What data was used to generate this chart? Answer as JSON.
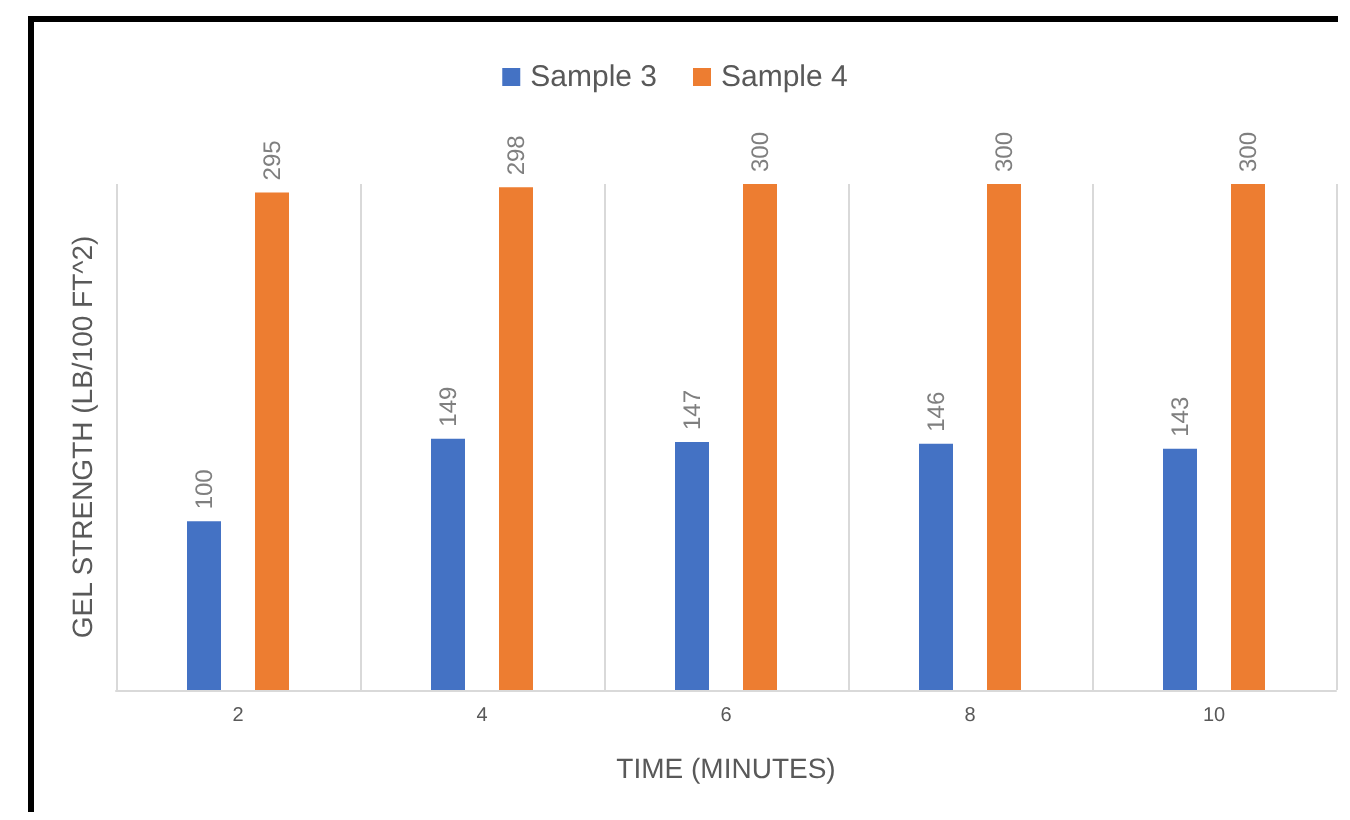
{
  "chart_data": {
    "type": "bar",
    "xlabel": "TIME (MINUTES)",
    "ylabel": "GEL STRENGTH (LB/100 FT^2)",
    "categories": [
      "2",
      "4",
      "6",
      "8",
      "10"
    ],
    "series": [
      {
        "name": "Sample 3",
        "color": "#4472c4",
        "values": [
          100,
          149,
          147,
          146,
          143
        ]
      },
      {
        "name": "Sample 4",
        "color": "#ed7d31",
        "values": [
          295,
          298,
          300,
          300,
          300
        ]
      }
    ],
    "data_labels": true,
    "grid": "x",
    "legend": "top"
  }
}
